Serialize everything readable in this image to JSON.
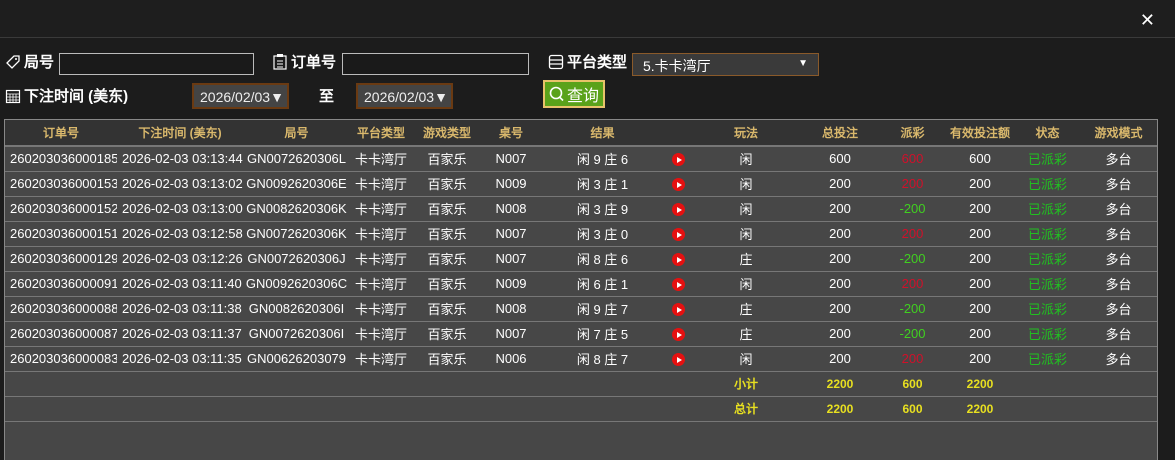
{
  "filters": {
    "round_label": "局号",
    "round_value": "",
    "order_label": "订单号",
    "order_value": "",
    "platform_label": "平台类型",
    "platform_value": "5.卡卡湾厅",
    "time_label": "下注时间 (美东)",
    "date_from": "2026/02/03",
    "to_label": "至",
    "date_to": "2026/02/03",
    "query_label": "查询"
  },
  "table": {
    "headers": [
      "订单号",
      "下注时间 (美东)",
      "局号",
      "平台类型",
      "游戏类型",
      "桌号",
      "结果",
      "",
      "玩法",
      "总投注",
      "派彩",
      "有效投注额",
      "状态",
      "游戏模式"
    ],
    "rows": [
      [
        "260203036000185",
        "2026-02-03 03:13:44",
        "GN0072620306L",
        "卡卡湾厅",
        "百家乐",
        "N007",
        "闲 9 庄 6",
        "闲",
        "600",
        "600",
        "600",
        "已派彩",
        "多台",
        "win"
      ],
      [
        "260203036000153",
        "2026-02-03 03:13:02",
        "GN0092620306E",
        "卡卡湾厅",
        "百家乐",
        "N009",
        "闲 3 庄 1",
        "闲",
        "200",
        "200",
        "200",
        "已派彩",
        "多台",
        "win"
      ],
      [
        "260203036000152",
        "2026-02-03 03:13:00",
        "GN0082620306K",
        "卡卡湾厅",
        "百家乐",
        "N008",
        "闲 3 庄 9",
        "闲",
        "200",
        "-200",
        "200",
        "已派彩",
        "多台",
        "lose"
      ],
      [
        "260203036000151",
        "2026-02-03 03:12:58",
        "GN0072620306K",
        "卡卡湾厅",
        "百家乐",
        "N007",
        "闲 3 庄 0",
        "闲",
        "200",
        "200",
        "200",
        "已派彩",
        "多台",
        "win"
      ],
      [
        "260203036000129",
        "2026-02-03 03:12:26",
        "GN0072620306J",
        "卡卡湾厅",
        "百家乐",
        "N007",
        "闲 8 庄 6",
        "庄",
        "200",
        "-200",
        "200",
        "已派彩",
        "多台",
        "lose"
      ],
      [
        "260203036000091",
        "2026-02-03 03:11:40",
        "GN0092620306C",
        "卡卡湾厅",
        "百家乐",
        "N009",
        "闲 6 庄 1",
        "闲",
        "200",
        "200",
        "200",
        "已派彩",
        "多台",
        "win"
      ],
      [
        "260203036000088",
        "2026-02-03 03:11:38",
        "GN0082620306I",
        "卡卡湾厅",
        "百家乐",
        "N008",
        "闲 9 庄 7",
        "庄",
        "200",
        "-200",
        "200",
        "已派彩",
        "多台",
        "lose"
      ],
      [
        "260203036000087",
        "2026-02-03 03:11:37",
        "GN0072620306I",
        "卡卡湾厅",
        "百家乐",
        "N007",
        "闲 7 庄 5",
        "庄",
        "200",
        "-200",
        "200",
        "已派彩",
        "多台",
        "lose"
      ],
      [
        "260203036000083",
        "2026-02-03 03:11:35",
        "GN00626203079",
        "卡卡湾厅",
        "百家乐",
        "N006",
        "闲 8 庄 7",
        "闲",
        "200",
        "200",
        "200",
        "已派彩",
        "多台",
        "win"
      ]
    ],
    "subtotal": {
      "label": "小计",
      "total_bet": "2200",
      "payout": "600",
      "valid_bet": "2200"
    },
    "total": {
      "label": "总计",
      "total_bet": "2200",
      "payout": "600",
      "valid_bet": "2200"
    }
  },
  "colors": {
    "header_text": "#d9b86c",
    "win": "#d0102a",
    "lose": "#40d020",
    "status": "#20c020",
    "summary": "#e8e020",
    "query_button": "#5aa21a"
  }
}
